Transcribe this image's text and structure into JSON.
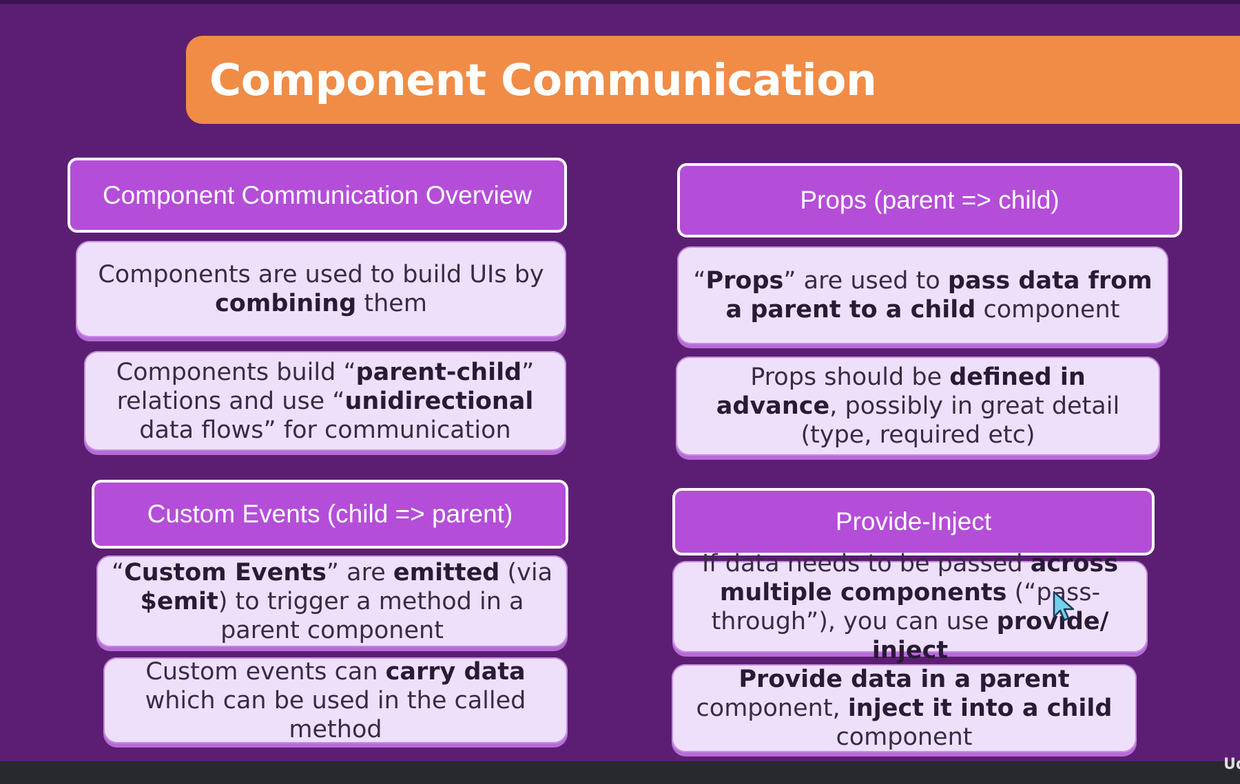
{
  "slide": {
    "title": "Component Communication",
    "corner_mark": "Ud"
  },
  "sections": {
    "overview": {
      "header": "Component Communication Overview",
      "card1": {
        "t1": "Components are used to build UIs by ",
        "b1": "combining",
        "t2": " them"
      },
      "card2": {
        "t1": "Components build “",
        "b1": "parent-child",
        "t2": "” relations and use “",
        "b2": "unidirectional",
        "t3": " data flows” for communication"
      }
    },
    "props": {
      "header": "Props (parent => child)",
      "card1": {
        "t1": "“",
        "b1": "Props",
        "t2": "” are used to ",
        "b2": "pass data from a parent to a child",
        "t3": " component"
      },
      "card2": {
        "t1": "Props should be ",
        "b1": "defined in advance",
        "t2": ", possibly in great detail (type, required etc)"
      }
    },
    "events": {
      "header": "Custom Events (child => parent)",
      "card1": {
        "t1": "“",
        "b1": "Custom Events",
        "t2": "” are ",
        "b2": "emitted",
        "t3": " (via ",
        "b3": "$emit",
        "t4": ") to trigger a method in a parent component"
      },
      "card2": {
        "t1": "Custom events can ",
        "b1": "carry data",
        "t2": " which can be used in the called method"
      }
    },
    "provide": {
      "header": "Provide-Inject",
      "card1": {
        "t1": "If data needs to be passed ",
        "b1": "across multiple components",
        "t2": " (“pass-through”), you can use ",
        "b2": "provide/ inject"
      },
      "card2": {
        "b1": "Provide data in a parent",
        "t1": " component, ",
        "b2": "inject it into a child",
        "t2": " component"
      }
    }
  },
  "icons": {
    "cursor": "mouse-pointer-icon"
  },
  "colors": {
    "background": "#5c1e73",
    "banner": "#f08c46",
    "header": "#b44ed8",
    "card": "#eee0fb"
  }
}
